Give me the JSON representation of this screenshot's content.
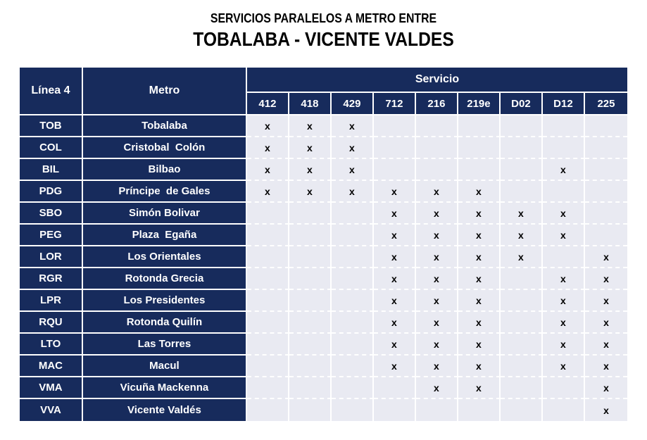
{
  "title": {
    "line1": "SERVICIOS PARALELOS A METRO ENTRE",
    "line2": "TOBALABA - VICENTE VALDES"
  },
  "table": {
    "col_headers": {
      "linea": "Línea 4",
      "metro": "Metro",
      "servicio": "Servicio"
    },
    "services": [
      "412",
      "418",
      "429",
      "712",
      "216",
      "219e",
      "D02",
      "D12",
      "225"
    ],
    "mark_symbol": "x",
    "rows": [
      {
        "code": "TOB",
        "name": "Tobalaba",
        "marks": [
          "x",
          "x",
          "x",
          "",
          "",
          "",
          "",
          "",
          ""
        ]
      },
      {
        "code": "COL",
        "name": "Cristobal  Colón",
        "marks": [
          "x",
          "x",
          "x",
          "",
          "",
          "",
          "",
          "",
          ""
        ]
      },
      {
        "code": "BIL",
        "name": "Bilbao",
        "marks": [
          "x",
          "x",
          "x",
          "",
          "",
          "",
          "",
          "x",
          ""
        ]
      },
      {
        "code": "PDG",
        "name": "Príncipe  de Gales",
        "marks": [
          "x",
          "x",
          "x",
          "x",
          "x",
          "x",
          "",
          "",
          ""
        ]
      },
      {
        "code": "SBO",
        "name": "Simón Bolivar",
        "marks": [
          "",
          "",
          "",
          "x",
          "x",
          "x",
          "x",
          "x",
          ""
        ]
      },
      {
        "code": "PEG",
        "name": "Plaza  Egaña",
        "marks": [
          "",
          "",
          "",
          "x",
          "x",
          "x",
          "x",
          "x",
          ""
        ]
      },
      {
        "code": "LOR",
        "name": "Los Orientales",
        "marks": [
          "",
          "",
          "",
          "x",
          "x",
          "x",
          "x",
          "",
          "x"
        ]
      },
      {
        "code": "RGR",
        "name": "Rotonda Grecia",
        "marks": [
          "",
          "",
          "",
          "x",
          "x",
          "x",
          "",
          "x",
          "x"
        ]
      },
      {
        "code": "LPR",
        "name": "Los Presidentes",
        "marks": [
          "",
          "",
          "",
          "x",
          "x",
          "x",
          "",
          "x",
          "x"
        ]
      },
      {
        "code": "RQU",
        "name": "Rotonda Quilín",
        "marks": [
          "",
          "",
          "",
          "x",
          "x",
          "x",
          "",
          "x",
          "x"
        ]
      },
      {
        "code": "LTO",
        "name": "Las Torres",
        "marks": [
          "",
          "",
          "",
          "x",
          "x",
          "x",
          "",
          "x",
          "x"
        ]
      },
      {
        "code": "MAC",
        "name": "Macul",
        "marks": [
          "",
          "",
          "",
          "x",
          "x",
          "x",
          "",
          "x",
          "x"
        ]
      },
      {
        "code": "VMA",
        "name": "Vicuña Mackenna",
        "marks": [
          "",
          "",
          "",
          "",
          "x",
          "x",
          "",
          "",
          "x"
        ]
      },
      {
        "code": "VVA",
        "name": "Vicente Valdés",
        "marks": [
          "",
          "",
          "",
          "",
          "",
          "",
          "",
          "",
          "x"
        ]
      }
    ]
  },
  "colors": {
    "navy": "#172B5C",
    "cell": "#E9EAF2",
    "border": "#FFFFFF",
    "mark": "#000000",
    "title": "#000000"
  }
}
